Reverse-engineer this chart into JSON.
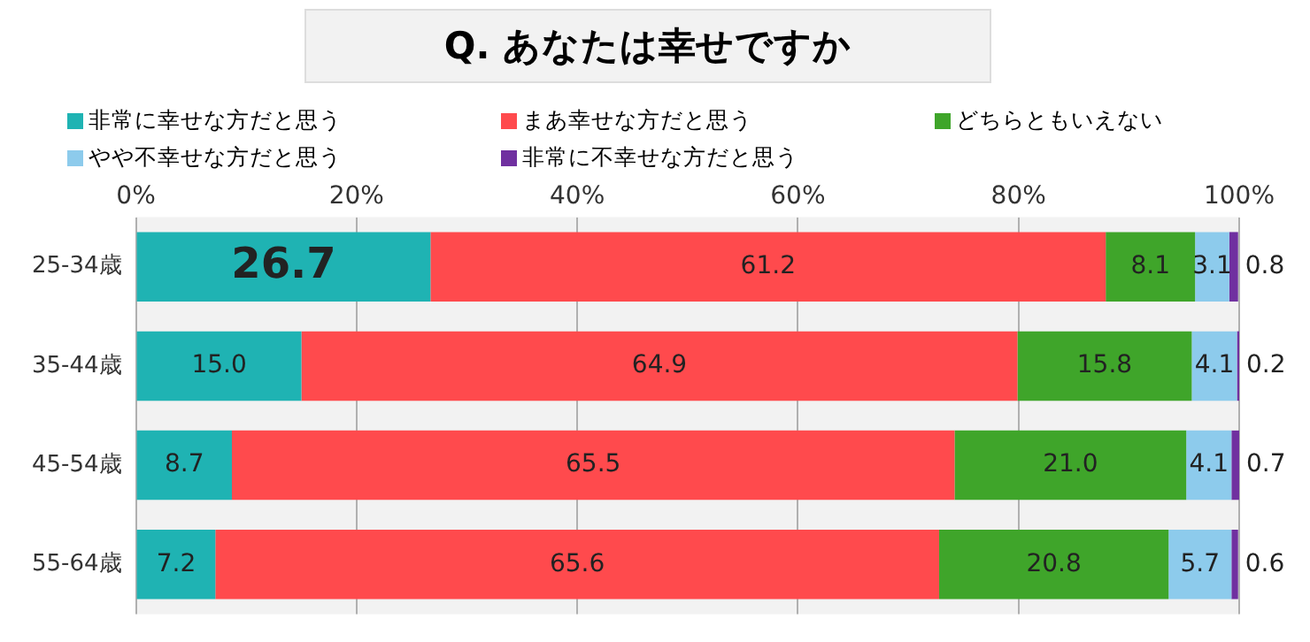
{
  "chart_data": {
    "type": "bar",
    "orientation": "horizontal",
    "stacked": true,
    "title": "Q. あなたは幸せですか",
    "categories": [
      "25-34歳",
      "35-44歳",
      "45-54歳",
      "55-64歳"
    ],
    "series": [
      {
        "name": "非常に幸せな方だと思う",
        "color": "#1fb3b3",
        "values": [
          26.7,
          15.0,
          8.7,
          7.2
        ],
        "value_labels": [
          "26.7",
          "15.0",
          "8.7",
          "7.2"
        ]
      },
      {
        "name": "まあ幸せな方だと思う",
        "color": "#ff4a4d",
        "values": [
          61.2,
          64.9,
          65.5,
          65.6
        ],
        "value_labels": [
          "61.2",
          "64.9",
          "65.5",
          "65.6"
        ]
      },
      {
        "name": "どちらともいえない",
        "color": "#3fa52a",
        "values": [
          8.1,
          15.8,
          21.0,
          20.8
        ],
        "value_labels": [
          "8.1",
          "15.8",
          "21.0",
          "20.8"
        ]
      },
      {
        "name": "やや不幸せな方だと思う",
        "color": "#8dcbec",
        "values": [
          3.1,
          4.1,
          4.1,
          5.7
        ],
        "value_labels": [
          "3.1",
          "4.1",
          "4.1",
          "5.7"
        ]
      },
      {
        "name": "非常に不幸せな方だと思う",
        "color": "#7030a0",
        "values": [
          0.8,
          0.2,
          0.7,
          0.6
        ],
        "value_labels": [
          "0.8",
          "0.2",
          "0.7",
          "0.6"
        ]
      }
    ],
    "xlim": [
      0,
      100
    ],
    "xticks": [
      {
        "value": 0,
        "label": "0%"
      },
      {
        "value": 20,
        "label": "20%"
      },
      {
        "value": 40,
        "label": "40%"
      },
      {
        "value": 60,
        "label": "60%"
      },
      {
        "value": 80,
        "label": "80%"
      },
      {
        "value": 100,
        "label": "100%"
      }
    ],
    "grid": "x",
    "legend": "top"
  }
}
